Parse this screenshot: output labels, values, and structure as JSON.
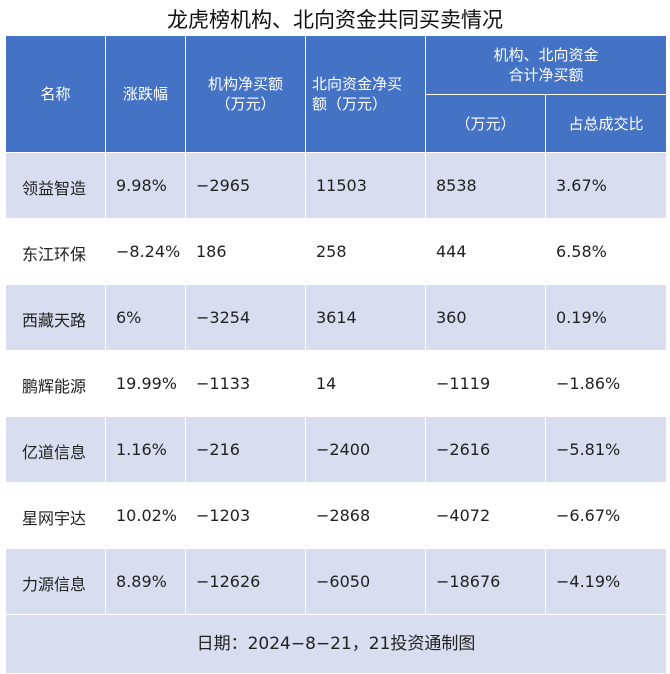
{
  "title": "龙虎榜机构、北向资金共同买卖情况",
  "headers": {
    "name": "名称",
    "change": "涨跌幅",
    "inst_line1": "机构净买额",
    "inst_line2": "（万元）",
    "north_line1": "北向资金净买",
    "north_line2": "额（万元）",
    "combined_line1": "机构、北向资金",
    "combined_line2": "合计净买额",
    "combined_unit": "（万元）",
    "ratio": "占总成交比"
  },
  "rows": [
    {
      "name": "领益智造",
      "change": "9.98%",
      "inst": "−2965",
      "north": "11503",
      "combined": "8538",
      "ratio": "3.67%"
    },
    {
      "name": "东江环保",
      "change": "−8.24%",
      "inst": "186",
      "north": "258",
      "combined": "444",
      "ratio": "6.58%"
    },
    {
      "name": "西藏天路",
      "change": "6%",
      "inst": "−3254",
      "north": "3614",
      "combined": "360",
      "ratio": "0.19%"
    },
    {
      "name": "鹏辉能源",
      "change": "19.99%",
      "inst": "−1133",
      "north": "14",
      "combined": "−1119",
      "ratio": "−1.86%"
    },
    {
      "name": "亿道信息",
      "change": "1.16%",
      "inst": "−216",
      "north": "−2400",
      "combined": "−2616",
      "ratio": "−5.81%"
    },
    {
      "name": "星网宇达",
      "change": "10.02%",
      "inst": "−1203",
      "north": "−2868",
      "combined": "−4072",
      "ratio": "−6.67%"
    },
    {
      "name": "力源信息",
      "change": "8.89%",
      "inst": "−12626",
      "north": "−6050",
      "combined": "−18676",
      "ratio": "−4.19%"
    }
  ],
  "footer": "日期：2024−8−21，21投资通制图",
  "colors": {
    "header_bg": "#4472c4",
    "stripe_bg": "#d9ddf0"
  }
}
